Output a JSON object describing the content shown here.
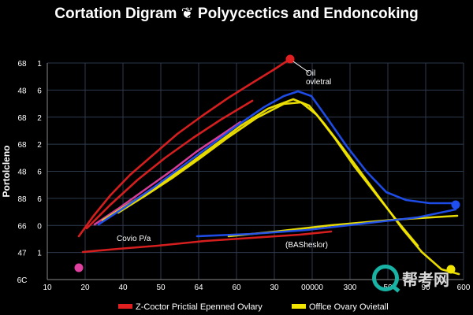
{
  "chart_data": {
    "type": "line",
    "title": "Cortation Digram ❦ Polyycectics and Endoncoking",
    "ylabel": "Portolcleno",
    "xlabel": "",
    "grid": true,
    "legend_position": "bottom",
    "y_tick_labels": [
      {
        "left": "68",
        "right": "1"
      },
      {
        "left": "48",
        "right": "6"
      },
      {
        "left": "68",
        "right": "2"
      },
      {
        "left": "68",
        "right": "2"
      },
      {
        "left": "48",
        "right": "6"
      },
      {
        "left": "88",
        "right": "6"
      },
      {
        "left": "66",
        "right": "0"
      },
      {
        "left": "47",
        "right": "1"
      },
      {
        "left": "6C",
        "right": ""
      }
    ],
    "x_tick_labels": [
      "10",
      "20",
      "40",
      "50",
      "64",
      "60",
      "30",
      "00000",
      "300",
      "50",
      "90",
      "600"
    ],
    "annotations": [
      {
        "id": "peak-label",
        "text": "Oil\novletral"
      },
      {
        "id": "mid-label",
        "text": "Covio P/a"
      },
      {
        "id": "base-label",
        "text": "(BASheslor)"
      }
    ],
    "series": [
      {
        "name": "Z-Coctor Prictial Epenned Ovlary",
        "color": "#e02020",
        "points": [
          [
            100,
            300
          ],
          [
            118,
            275
          ],
          [
            140,
            248
          ],
          [
            165,
            222
          ],
          [
            195,
            196
          ],
          [
            225,
            170
          ],
          [
            258,
            146
          ],
          [
            290,
            124
          ],
          [
            322,
            104
          ],
          [
            348,
            88
          ],
          [
            368,
            75
          ]
        ]
      },
      {
        "name": "",
        "color": "#e02020",
        "points": [
          [
            110,
            290
          ],
          [
            140,
            260
          ],
          [
            175,
            228
          ],
          [
            210,
            200
          ],
          [
            245,
            175
          ],
          [
            280,
            152
          ],
          [
            320,
            128
          ]
        ]
      },
      {
        "name": "",
        "color": "#e02020",
        "points": [
          [
            105,
            320
          ],
          [
            150,
            316
          ],
          [
            200,
            312
          ],
          [
            260,
            306
          ],
          [
            320,
            302
          ],
          [
            380,
            298
          ],
          [
            420,
            294
          ]
        ]
      },
      {
        "name": "",
        "color": "#e040a0",
        "points": [
          [
            120,
            285
          ],
          [
            150,
            265
          ],
          [
            185,
            240
          ],
          [
            220,
            215
          ],
          [
            250,
            192
          ],
          [
            280,
            172
          ],
          [
            305,
            155
          ]
        ]
      },
      {
        "name": "Offlce Ovary Ovietall",
        "color": "#f2e600",
        "points": [
          [
            130,
            280
          ],
          [
            165,
            258
          ],
          [
            200,
            236
          ],
          [
            235,
            212
          ],
          [
            270,
            186
          ],
          [
            305,
            160
          ],
          [
            340,
            138
          ],
          [
            372,
            126
          ],
          [
            392,
            134
          ],
          [
            412,
            158
          ],
          [
            435,
            188
          ],
          [
            460,
            222
          ],
          [
            485,
            256
          ],
          [
            510,
            290
          ],
          [
            535,
            320
          ],
          [
            560,
            342
          ],
          [
            582,
            348
          ]
        ]
      },
      {
        "name": "",
        "color": "#f2e600",
        "points": [
          [
            150,
            270
          ],
          [
            185,
            248
          ],
          [
            220,
            225
          ],
          [
            255,
            200
          ],
          [
            290,
            174
          ],
          [
            325,
            150
          ],
          [
            360,
            132
          ],
          [
            382,
            130
          ],
          [
            402,
            146
          ],
          [
            425,
            176
          ],
          [
            450,
            212
          ],
          [
            478,
            248
          ],
          [
            505,
            282
          ],
          [
            530,
            312
          ]
        ]
      },
      {
        "name": "",
        "color": "#f2e600",
        "points": [
          [
            290,
            300
          ],
          [
            350,
            294
          ],
          [
            420,
            286
          ],
          [
            500,
            279
          ],
          [
            580,
            274
          ]
        ]
      },
      {
        "name": "",
        "color": "#1f4ff0",
        "points": [
          [
            125,
            285
          ],
          [
            160,
            262
          ],
          [
            195,
            238
          ],
          [
            230,
            212
          ],
          [
            265,
            186
          ],
          [
            300,
            160
          ],
          [
            335,
            136
          ],
          [
            360,
            122
          ],
          [
            378,
            116
          ],
          [
            395,
            122
          ],
          [
            415,
            150
          ],
          [
            440,
            186
          ],
          [
            465,
            218
          ],
          [
            490,
            244
          ],
          [
            515,
            254
          ],
          [
            545,
            258
          ],
          [
            578,
            258
          ]
        ]
      },
      {
        "name": "",
        "color": "#1f4ff0",
        "points": [
          [
            250,
            300
          ],
          [
            320,
            297
          ],
          [
            390,
            292
          ],
          [
            460,
            284
          ],
          [
            530,
            276
          ],
          [
            578,
            266
          ]
        ]
      }
    ],
    "markers": [
      {
        "color": "#e02020",
        "x": 368,
        "y": 75
      },
      {
        "color": "#1f4ff0",
        "x": 578,
        "y": 260
      },
      {
        "color": "#f2e600",
        "x": 572,
        "y": 342
      },
      {
        "color": "#e040a0",
        "x": 100,
        "y": 340
      }
    ]
  }
}
